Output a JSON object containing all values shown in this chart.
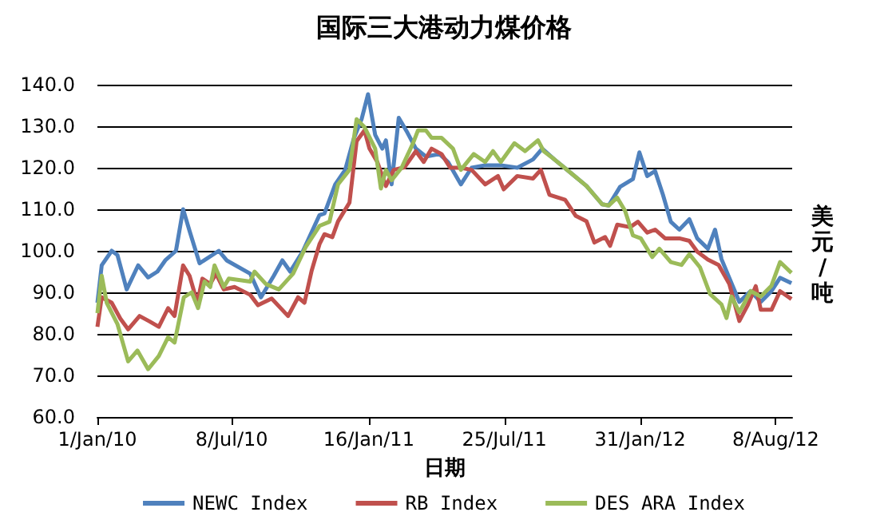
{
  "chart_data": {
    "type": "line",
    "title": "国际三大港动力煤价格",
    "xlabel": "日期",
    "ylabel": "美元/吨",
    "legend": "bottom",
    "grid": "y",
    "marker": "none",
    "line_style": "solid",
    "xlim": [
      "2010-01-01",
      "2012-08-31"
    ],
    "xticks": [
      {
        "value": "2010-01-01",
        "label": "1/Jan/10"
      },
      {
        "value": "2010-07-08",
        "label": "8/Jul/10"
      },
      {
        "value": "2011-01-16",
        "label": "16/Jan/11"
      },
      {
        "value": "2011-07-25",
        "label": "25/Jul/11"
      },
      {
        "value": "2012-01-31",
        "label": "31/Jan/12"
      },
      {
        "value": "2012-08-08",
        "label": "8/Aug/12"
      }
    ],
    "ylim": [
      60,
      140
    ],
    "yticks": [
      {
        "value": 60,
        "label": "60.0"
      },
      {
        "value": 70,
        "label": "70.0"
      },
      {
        "value": 80,
        "label": "80.0"
      },
      {
        "value": 90,
        "label": "90.0"
      },
      {
        "value": 100,
        "label": "100.0"
      },
      {
        "value": 110,
        "label": "110.0"
      },
      {
        "value": 120,
        "label": "120.0"
      },
      {
        "value": 130,
        "label": "130.0"
      },
      {
        "value": 140,
        "label": "140.0"
      }
    ],
    "series": [
      {
        "name": "NEWC Index",
        "color": "#4f81bd",
        "x": [
          "2010-01-01",
          "2010-01-07",
          "2010-01-21",
          "2010-01-29",
          "2010-02-11",
          "2010-02-27",
          "2010-03-13",
          "2010-03-26",
          "2010-04-06",
          "2010-04-21",
          "2010-05-01",
          "2010-05-10",
          "2010-05-24",
          "2010-06-20",
          "2010-07-01",
          "2010-08-03",
          "2010-08-18",
          "2010-09-05",
          "2010-09-17",
          "2010-09-28",
          "2010-10-16",
          "2010-11-08",
          "2010-11-15",
          "2010-11-30",
          "2010-12-14",
          "2010-12-26",
          "2011-01-06",
          "2011-01-15",
          "2011-01-25",
          "2011-02-04",
          "2011-02-09",
          "2011-02-17",
          "2011-02-27",
          "2011-03-11",
          "2011-03-23",
          "2011-04-06",
          "2011-04-25",
          "2011-05-07",
          "2011-05-25",
          "2011-06-09",
          "2011-06-28",
          "2011-07-20",
          "2011-08-12",
          "2011-09-03",
          "2011-09-16",
          "2011-10-03",
          "2011-10-25",
          "2011-11-17",
          "2011-12-09",
          "2011-12-18",
          "2012-01-03",
          "2012-01-21",
          "2012-01-30",
          "2012-02-10",
          "2012-02-21",
          "2012-03-03",
          "2012-03-14",
          "2012-03-26",
          "2012-04-09",
          "2012-04-20",
          "2012-05-05",
          "2012-05-15",
          "2012-05-24",
          "2012-06-07",
          "2012-06-18",
          "2012-07-04",
          "2012-07-18",
          "2012-08-02",
          "2012-08-14",
          "2012-08-30"
        ],
        "values": [
          87.5,
          96.5,
          100,
          99,
          90.7,
          96.5,
          93.6,
          95,
          97.7,
          100,
          110,
          104.8,
          97,
          100,
          97.7,
          94.5,
          88.8,
          94,
          97.7,
          95,
          100,
          108.6,
          109,
          116,
          119.5,
          127,
          131.7,
          137.7,
          127.9,
          124.6,
          126.6,
          116,
          132,
          128.5,
          124.6,
          122.7,
          123.3,
          121.4,
          116,
          120,
          120.6,
          120.6,
          120,
          122,
          124.6,
          122,
          118.9,
          115.6,
          111.2,
          110.9,
          115.4,
          117.3,
          123.7,
          118,
          119.2,
          113.5,
          107,
          105.1,
          107.6,
          103,
          100.5,
          105.1,
          98,
          92.2,
          87.7,
          90.3,
          87.7,
          90.3,
          93.5,
          92.2
        ]
      },
      {
        "name": "RB Index",
        "color": "#c0504d",
        "x": [
          "2010-01-01",
          "2010-01-07",
          "2010-01-21",
          "2010-02-02",
          "2010-02-13",
          "2010-03-01",
          "2010-03-15",
          "2010-03-28",
          "2010-04-10",
          "2010-04-19",
          "2010-05-01",
          "2010-05-10",
          "2010-05-21",
          "2010-05-28",
          "2010-06-08",
          "2010-06-16",
          "2010-06-27",
          "2010-07-12",
          "2010-08-03",
          "2010-08-14",
          "2010-09-02",
          "2010-09-25",
          "2010-10-09",
          "2010-10-18",
          "2010-10-28",
          "2010-11-08",
          "2010-11-15",
          "2010-11-26",
          "2010-12-04",
          "2010-12-20",
          "2010-12-30",
          "2011-01-10",
          "2011-01-17",
          "2011-01-28",
          "2011-02-09",
          "2011-02-20",
          "2011-03-07",
          "2011-03-23",
          "2011-04-03",
          "2011-04-14",
          "2011-04-28",
          "2011-05-10",
          "2011-05-25",
          "2011-06-09",
          "2011-06-28",
          "2011-07-16",
          "2011-07-24",
          "2011-08-12",
          "2011-09-03",
          "2011-09-14",
          "2011-09-26",
          "2011-10-18",
          "2011-11-02",
          "2011-11-17",
          "2011-11-28",
          "2011-12-13",
          "2011-12-20",
          "2011-12-30",
          "2012-01-17",
          "2012-01-28",
          "2012-02-10",
          "2012-02-21",
          "2012-03-06",
          "2012-03-26",
          "2012-04-09",
          "2012-04-20",
          "2012-05-05",
          "2012-05-20",
          "2012-06-04",
          "2012-06-18",
          "2012-06-30",
          "2012-07-11",
          "2012-07-18",
          "2012-08-02",
          "2012-08-14",
          "2012-08-30"
        ],
        "values": [
          81.7,
          88.8,
          87.5,
          83.7,
          81.1,
          84.3,
          83,
          81.7,
          86.2,
          84.3,
          96.5,
          94,
          87.5,
          93.3,
          92,
          94.5,
          90.7,
          91.3,
          89.4,
          86.9,
          88.5,
          84.3,
          88.8,
          87.5,
          95.2,
          101.6,
          104,
          103.3,
          107.1,
          111.6,
          126.4,
          129,
          124.6,
          121.4,
          115.6,
          119.5,
          120.1,
          124,
          121.4,
          124.6,
          123.3,
          120,
          120,
          119.5,
          116,
          118,
          114.8,
          118,
          117.4,
          119.5,
          113.5,
          112.3,
          108.4,
          107.1,
          102,
          103.3,
          101.2,
          106.3,
          105.7,
          107,
          104.4,
          105.1,
          103,
          103,
          102.4,
          99.8,
          97.9,
          96.6,
          92,
          83.1,
          87,
          91.5,
          85.8,
          85.8,
          90.3,
          88.4
        ]
      },
      {
        "name": "DES ARA Index",
        "color": "#9bbb59",
        "x": [
          "2010-01-01",
          "2010-01-07",
          "2010-01-14",
          "2010-01-29",
          "2010-02-13",
          "2010-02-26",
          "2010-03-13",
          "2010-03-28",
          "2010-04-10",
          "2010-04-19",
          "2010-05-02",
          "2010-05-13",
          "2010-05-22",
          "2010-05-31",
          "2010-06-08",
          "2010-06-14",
          "2010-06-27",
          "2010-07-04",
          "2010-08-03",
          "2010-08-09",
          "2010-08-25",
          "2010-09-12",
          "2010-10-02",
          "2010-10-20",
          "2010-11-08",
          "2010-11-22",
          "2010-12-04",
          "2010-12-20",
          "2010-12-30",
          "2011-01-10",
          "2011-01-25",
          "2011-02-02",
          "2011-02-09",
          "2011-02-17",
          "2011-03-03",
          "2011-03-19",
          "2011-03-26",
          "2011-04-06",
          "2011-04-14",
          "2011-04-28",
          "2011-05-14",
          "2011-05-25",
          "2011-06-12",
          "2011-06-28",
          "2011-07-09",
          "2011-07-20",
          "2011-08-08",
          "2011-08-23",
          "2011-09-10",
          "2011-09-18",
          "2011-10-03",
          "2011-10-25",
          "2011-11-17",
          "2011-12-09",
          "2011-12-18",
          "2011-12-30",
          "2012-01-10",
          "2012-01-21",
          "2012-02-01",
          "2012-02-17",
          "2012-02-27",
          "2012-03-14",
          "2012-03-29",
          "2012-04-09",
          "2012-04-24",
          "2012-05-08",
          "2012-05-24",
          "2012-05-31",
          "2012-06-07",
          "2012-06-18",
          "2012-07-04",
          "2012-07-18",
          "2012-08-02",
          "2012-08-14",
          "2012-08-30"
        ],
        "values": [
          85,
          94,
          87.5,
          82.4,
          73.4,
          76,
          71.5,
          74.7,
          79.2,
          77.9,
          88.8,
          90,
          86.2,
          92.6,
          91.3,
          96.5,
          91.3,
          93.3,
          92.6,
          95,
          92,
          90.7,
          94.5,
          101,
          106,
          107,
          116,
          119.5,
          131.7,
          129.8,
          124.6,
          115,
          119.5,
          117,
          120,
          125.9,
          129,
          129,
          127.2,
          127.2,
          124.6,
          119.5,
          123.3,
          121.4,
          124,
          121.4,
          125.9,
          124,
          126.6,
          124,
          122,
          118.9,
          115.6,
          111.2,
          110.9,
          112.8,
          109.6,
          103.7,
          103,
          98.5,
          100.5,
          97.3,
          96.6,
          99.2,
          96,
          89.6,
          87.1,
          83.8,
          89,
          85.2,
          90.3,
          89,
          91.6,
          97.3,
          94.7
        ]
      }
    ]
  }
}
